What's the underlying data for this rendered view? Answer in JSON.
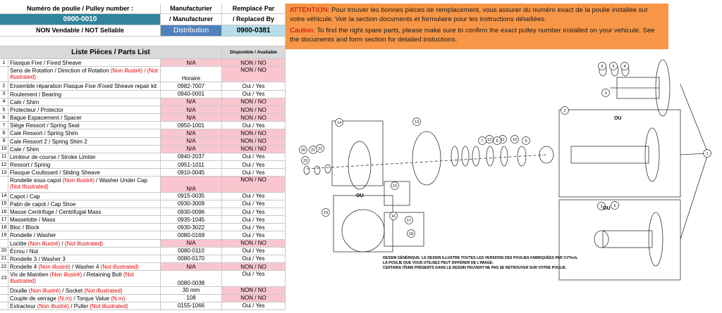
{
  "header": {
    "pulley_label": "Numéro de poulie / Pulley number :",
    "pulley_number": "0900-0010",
    "non_sellable": "NON Vendable / NOT Sellable",
    "manufacturer_fr": "Manufacturier",
    "manufacturer_en": "/ Manufacturer",
    "manufacturer": "Distribution",
    "replaced_fr": "Remplacé Par",
    "replaced_en": "/ Replaced By",
    "replacement": "0900-0381"
  },
  "parts": {
    "title": "Liste Pièces / Parts List",
    "available_header": "Disponible / Available",
    "rows": [
      {
        "no": "1",
        "desc": [
          {
            "text": "Flasque Fixe / Fixed Sheave"
          }
        ],
        "part": "N/A",
        "no_part": true,
        "available": "NON / NO",
        "in_stock": false
      },
      {
        "no": null,
        "desc": [
          {
            "text": "Sens de Rotation / Direction of Rotation "
          },
          {
            "text": "(Non illustré) / (Not illustrated)",
            "red": true
          }
        ],
        "part": "Horaire",
        "no_part": false,
        "available": "NON / NO",
        "in_stock": false,
        "tall": true
      },
      {
        "no": "2",
        "desc": [
          {
            "text": "Ensemble réparation Flasque Fixe /Fixed Sheave repair kit"
          }
        ],
        "part": "0982-7007",
        "no_part": false,
        "available": "Oui / Yes",
        "in_stock": true
      },
      {
        "no": "3",
        "desc": [
          {
            "text": "Roulement / Bearing"
          }
        ],
        "part": "0940-0001",
        "no_part": false,
        "available": "Oui / Yes",
        "in_stock": true
      },
      {
        "no": "4",
        "desc": [
          {
            "text": "Cale / Shim"
          }
        ],
        "part": "N/A",
        "no_part": true,
        "available": "NON / NO",
        "in_stock": false
      },
      {
        "no": "5",
        "desc": [
          {
            "text": "Protecteur / Protector"
          }
        ],
        "part": "N/A",
        "no_part": true,
        "available": "NON / NO",
        "in_stock": false
      },
      {
        "no": "6",
        "desc": [
          {
            "text": "Bague Espacement / Spacer"
          }
        ],
        "part": "N/A",
        "no_part": true,
        "available": "NON / NO",
        "in_stock": false
      },
      {
        "no": "7",
        "desc": [
          {
            "text": "Siège Ressort / Spring Seat"
          }
        ],
        "part": "0950-1001",
        "no_part": false,
        "available": "Oui / Yes",
        "in_stock": true
      },
      {
        "no": "8",
        "desc": [
          {
            "text": "Cale Ressort / Spring Shim"
          }
        ],
        "part": "N/A",
        "no_part": true,
        "available": "NON / NO",
        "in_stock": false
      },
      {
        "no": "9",
        "desc": [
          {
            "text": "Cale Ressort 2 / Spring Shim 2"
          }
        ],
        "part": "N/A",
        "no_part": true,
        "available": "NON / NO",
        "in_stock": false
      },
      {
        "no": "10",
        "desc": [
          {
            "text": "Cale / Shim"
          }
        ],
        "part": "N/A",
        "no_part": true,
        "available": "NON / NO",
        "in_stock": false
      },
      {
        "no": "11",
        "desc": [
          {
            "text": "Limiteur de course / Stroke Limiter"
          }
        ],
        "part": "0940-2037",
        "no_part": false,
        "available": "Oui / Yes",
        "in_stock": true
      },
      {
        "no": "12",
        "desc": [
          {
            "text": "Ressort / Spring"
          }
        ],
        "part": "0951-1011",
        "no_part": false,
        "available": "Oui / Yes",
        "in_stock": true
      },
      {
        "no": "13",
        "desc": [
          {
            "text": "Flasque Coulissant / Sliding Sheave"
          }
        ],
        "part": "0910-0045",
        "no_part": false,
        "available": "Oui / Yes",
        "in_stock": true
      },
      {
        "no": null,
        "desc": [
          {
            "text": "Rondelle sous capot "
          },
          {
            "text": "(Non illustré)",
            "red": true
          },
          {
            "text": " / Washer Under Cap "
          },
          {
            "text": "(Not Illustrated)",
            "red": true
          }
        ],
        "part": "N/A",
        "no_part": true,
        "available": "NON / NO",
        "in_stock": false,
        "tall": true
      },
      {
        "no": "14",
        "desc": [
          {
            "text": "Capot / Cap"
          }
        ],
        "part": "0915-0035",
        "no_part": false,
        "available": "Oui / Yes",
        "in_stock": true
      },
      {
        "no": "15",
        "desc": [
          {
            "text": "Patin de capot / Cap Shoe"
          }
        ],
        "part": "0930-3009",
        "no_part": false,
        "available": "Oui / Yes",
        "in_stock": true
      },
      {
        "no": "16",
        "desc": [
          {
            "text": "Masse Centrifuge / Centrifugal Mass"
          }
        ],
        "part": "0930-0096",
        "no_part": false,
        "available": "Oui / Yes",
        "in_stock": true
      },
      {
        "no": "17",
        "desc": [
          {
            "text": "Masselotte / Mass"
          }
        ],
        "part": "0935-1045",
        "no_part": false,
        "available": "Oui / Yes",
        "in_stock": true
      },
      {
        "no": "18",
        "desc": [
          {
            "text": "Bloc / Block"
          }
        ],
        "part": "0930-3022",
        "no_part": false,
        "available": "Oui / Yes",
        "in_stock": true
      },
      {
        "no": "19",
        "desc": [
          {
            "text": "Rondelle / Washer"
          }
        ],
        "part": "0080-0169",
        "no_part": false,
        "available": "Oui / Yes",
        "in_stock": true
      },
      {
        "no": null,
        "desc": [
          {
            "text": "Loctite "
          },
          {
            "text": "(Non illustré)",
            "red": true
          },
          {
            "text": " / "
          },
          {
            "text": "(Not illustrated)",
            "red": true
          }
        ],
        "part": "N/A",
        "no_part": true,
        "available": "NON / NO",
        "in_stock": false
      },
      {
        "no": "20",
        "desc": [
          {
            "text": "Écrou / Nut"
          }
        ],
        "part": "0080-0110",
        "no_part": false,
        "available": "Oui / Yes",
        "in_stock": true
      },
      {
        "no": "21",
        "desc": [
          {
            "text": "Rondelle 3 / Washer 3"
          }
        ],
        "part": "0080-0170",
        "no_part": false,
        "available": "Oui / Yes",
        "in_stock": true
      },
      {
        "no": "22",
        "desc": [
          {
            "text": "Rondelle 4 "
          },
          {
            "text": "(Non illustré)",
            "red": true
          },
          {
            "text": " / Washer 4 "
          },
          {
            "text": "(Not illustrated)",
            "red": true
          }
        ],
        "part": "N/A",
        "no_part": true,
        "available": "NON / NO",
        "in_stock": false
      },
      {
        "no": "23",
        "desc": [
          {
            "text": "Vis de Maintien "
          },
          {
            "text": "(Non illustré)",
            "red": true
          },
          {
            "text": " / Retaining Bolt "
          },
          {
            "text": "(Not illustrated)",
            "red": true
          }
        ],
        "part": "0080-0038",
        "no_part": false,
        "available": "Oui / Yes",
        "in_stock": true,
        "tall": true
      },
      {
        "no": null,
        "desc": [
          {
            "text": "Douille "
          },
          {
            "text": "(Non illustré)",
            "red": true
          },
          {
            "text": " / Socket "
          },
          {
            "text": "(Not illustrated)",
            "red": true
          }
        ],
        "part": "30 mm",
        "no_part": false,
        "available": "NON / NO",
        "in_stock": false
      },
      {
        "no": null,
        "desc": [
          {
            "text": "Couple de serrage "
          },
          {
            "text": "(N.m)",
            "red": true
          },
          {
            "text": " / Torque Value "
          },
          {
            "text": "(N.m)",
            "red": true
          }
        ],
        "part": "108",
        "no_part": false,
        "available": "NON / NO",
        "in_stock": false
      },
      {
        "no": null,
        "desc": [
          {
            "text": "Extracteur "
          },
          {
            "text": "(Non illustré)",
            "red": true
          },
          {
            "text": " / Puller "
          },
          {
            "text": "(Not illustrated)",
            "red": true
          }
        ],
        "part": "0155-1066",
        "no_part": false,
        "available": "Oui / Yes",
        "in_stock": true
      }
    ]
  },
  "notice": {
    "attention_label": "ATTENTION:",
    "attention_text": " Pour trouver les bonnes pièces de remplacement, vous assurer du numéro exact de la poulie installée sur votre véhicule. Voir la section documents et formulaire pour les instructions détaillées.",
    "caution_label": "Caution:",
    "caution_text": " To find the right spare parts, please make sure to confirm the exact pulley number installed on your vehicule. See the documents and form section for detailed instuctions."
  },
  "diagram": {
    "balloons": [
      "6",
      "5",
      "4",
      "3",
      "2",
      "1",
      "12",
      "11",
      "10",
      "9",
      "8",
      "7",
      "13",
      "14",
      "20",
      "21",
      "22",
      "23",
      "15",
      "16",
      "17",
      "18",
      "19",
      "3",
      "6"
    ],
    "or_labels": [
      "OU",
      "OU",
      "OU"
    ],
    "note_lines": [
      "DESSIN GÉNÉRIQUE: LE DESSIN ILLUSTRE TOUTES LES VERSIONS DES POULIES FABRIQUÉES PAR CVTech.",
      "LA POULIE QUE VOUS UTILISEZ PEUT DIFFÉRER DE L'IMAGE;",
      "CERTAINS ITEMS PRÉSENTS DANS LE DESSIN PEUVENT NE PAS SE RETROUVER SUR VOTRE POULIE."
    ]
  }
}
